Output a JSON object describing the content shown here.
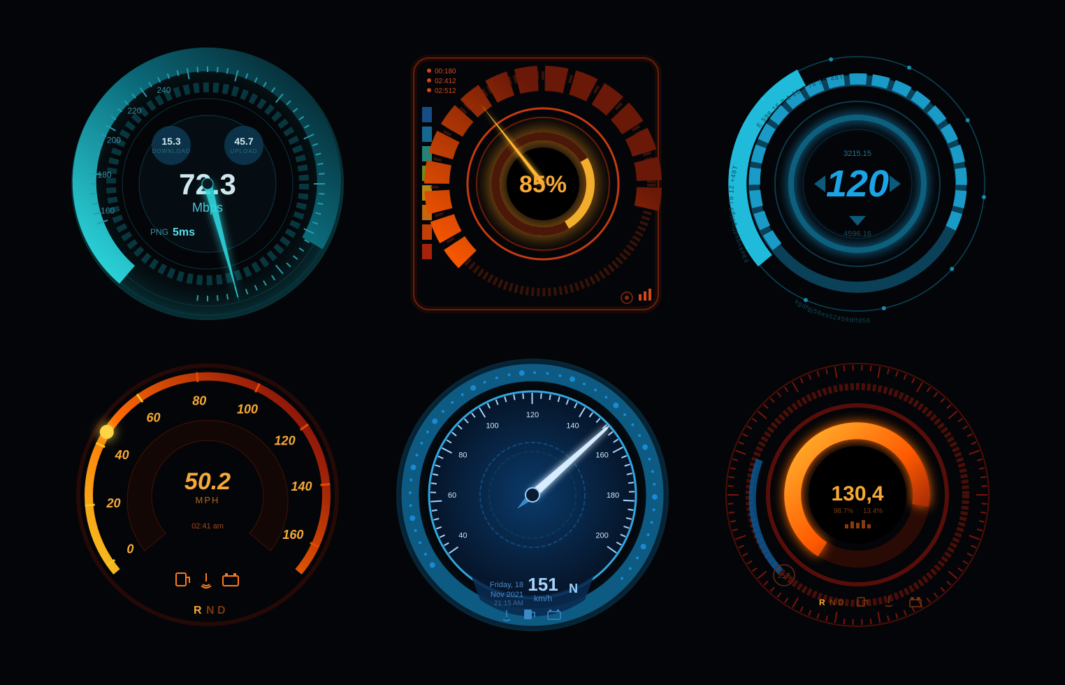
{
  "background_color": "#040508",
  "gauges": {
    "internet_speed": {
      "type": "radial-gauge",
      "main_value": "72.3",
      "unit": "Mbps",
      "download_value": "15.3",
      "download_label": "DOWNLOAD",
      "upload_value": "45.7",
      "upload_label": "UPLOAD",
      "ping_label": "PNG",
      "ping_value": "5ms",
      "scale_labels": [
        "160",
        "180",
        "200",
        "220",
        "240"
      ],
      "scale_positions_deg": [
        -195,
        -175,
        -155,
        -135,
        -115
      ],
      "needle_angle_deg": 75,
      "colors": {
        "ring_cyan": "#27d0da",
        "ring_dark": "#0d3844",
        "glow_cyan": "#12b6c2",
        "needle": "#2edbe1",
        "bubble": "#144a66",
        "inner": "#0a1820"
      }
    },
    "percent": {
      "type": "radial-progress",
      "value": "85%",
      "progress_pct": 85,
      "meta_lines": [
        "00:180",
        "02:412",
        "02:512"
      ],
      "colors": {
        "frame": "#d44818",
        "arc_bright": "#ff6a00",
        "arc_glow": "#ff9a1a",
        "inner_gold": "#f2b028",
        "needle": "#ffb730",
        "bg": "#0a0605"
      }
    },
    "hud_ring": {
      "type": "hud-ring",
      "value": "120",
      "upper_code": "3215.15",
      "lower_code": "4596.16",
      "arc_text_top": "E 596.16 0.1 23.9 78 5G 48T",
      "arc_text_left": "F8ekvgsdfigdfg9 78 12 +48T",
      "arc_text_bottom": "kgdfgj56es52459dffd56",
      "colors": {
        "outer": "#0f5a7a",
        "bright": "#22c4e6",
        "inner": "#0b3b52",
        "value": "#1aa4e6"
      }
    },
    "mph": {
      "type": "speedometer",
      "value": "50.2",
      "unit": "MPH",
      "time": "02:41 am",
      "scale_labels": [
        "0",
        "20",
        "40",
        "60",
        "80",
        "100",
        "120",
        "140",
        "160"
      ],
      "scale_angles_deg": [
        -215,
        -185,
        -155,
        -125,
        -95,
        -65,
        -35,
        -5,
        25
      ],
      "pointer_angle_deg": -148,
      "gear_r": "R",
      "gear_nd": "N D",
      "colors": {
        "arc_yellow": "#f5a723",
        "arc_orange": "#ff6a00",
        "arc_red": "#c71f0e",
        "dark_red": "#3a0c05",
        "pointer_ball": "#ffd445",
        "icon_active": "#ff7a1a"
      }
    },
    "kmh": {
      "type": "speedometer",
      "value": "151",
      "unit": "km/h",
      "gear": "N",
      "date_top": "Friday, 18",
      "date_bottom": "Nov 2021",
      "time": "21:15 AM",
      "scale_labels": [
        "40",
        "60",
        "80",
        "100",
        "120",
        "140",
        "160",
        "180",
        "200"
      ],
      "scale_angles_deg": [
        -210,
        -180,
        -150,
        -120,
        -90,
        -60,
        -30,
        0,
        30
      ],
      "needle_angle_deg": -42,
      "colors": {
        "ring1": "#0a6a9a",
        "ring_bright": "#2ea8e0",
        "face": "#0a2a50",
        "face_dark": "#071830",
        "needle": "#d8ecff",
        "accent": "#3a8ac8"
      }
    },
    "red_dial": {
      "type": "radial-gauge",
      "value": "130,4",
      "sub_a": "98.7%",
      "sub_b": "13.4%",
      "badge": "15.5",
      "gear_r": "R",
      "gear_nd": "N D",
      "arc_pct": 70,
      "colors": {
        "outer_red": "#7a120a",
        "outer_tick": "#9a180c",
        "arc_bright": "#ff9a1a",
        "arc_red": "#c71f0e",
        "inner_blue": "#0a4a8a",
        "glow": "#ff6a00"
      }
    }
  }
}
